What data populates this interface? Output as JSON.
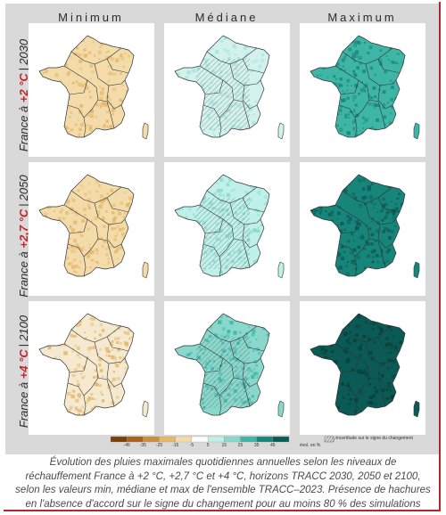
{
  "columns": [
    "Minimum",
    "Médiane",
    "Maximum"
  ],
  "rows": [
    {
      "prefix": "France à ",
      "warming": "+2 °C",
      "year": "2030"
    },
    {
      "prefix": "France à ",
      "warming": "+2,7 °C",
      "year": "2050"
    },
    {
      "prefix": "France à ",
      "warming": "+4 °C",
      "year": "2100"
    }
  ],
  "row_separator": "|",
  "legend": {
    "ticks": [
      "-45",
      "-35",
      "-25",
      "-15",
      "-5",
      "5",
      "15",
      "25",
      "35",
      "45"
    ],
    "unit": "évol. en %",
    "hatch_label": "incertitude sur le signe du changement",
    "colors": [
      "#7a3f0c",
      "#a8621f",
      "#cc8f3e",
      "#e4b76b",
      "#f3dcaa",
      "#ffffff",
      "#bff0ea",
      "#8ad8cc",
      "#3fb5a5",
      "#17857a",
      "#0b5a55"
    ]
  },
  "caption": [
    "Évolution des pluies maximales quotidiennes annuelles selon les niveaux de",
    "réchauffement France à +2 °C, +2,7 °C et +4 °C, horizons TRACC 2030, 2050 et 2100,",
    "selon les valeurs min, médiane et max de l'ensemble TRACC–2023. Présence de hachures",
    "en l'absence d'accord sur le signe du changement pour au moins 80 % des simulations"
  ],
  "maps": [
    [
      {
        "fill": "#f3dcaa",
        "speckle": "#e4b76b",
        "hatched": false
      },
      {
        "fill": "#d3f2ee",
        "speckle": "#a6e3da",
        "hatched": true
      },
      {
        "fill": "#3fb5a5",
        "speckle": "#17857a",
        "hatched": false
      }
    ],
    [
      {
        "fill": "#f3dcaa",
        "speckle": "#e4b76b",
        "hatched": false
      },
      {
        "fill": "#bff0ea",
        "speckle": "#8ad8cc",
        "hatched": true
      },
      {
        "fill": "#17857a",
        "speckle": "#0b5a55",
        "hatched": false
      }
    ],
    [
      {
        "fill": "#f5ead0",
        "speckle": "#e4b76b",
        "hatched": false
      },
      {
        "fill": "#8ad8cc",
        "speckle": "#3fb5a5",
        "hatched": true
      },
      {
        "fill": "#0b5a55",
        "speckle": "#063f3b",
        "hatched": false
      }
    ]
  ]
}
